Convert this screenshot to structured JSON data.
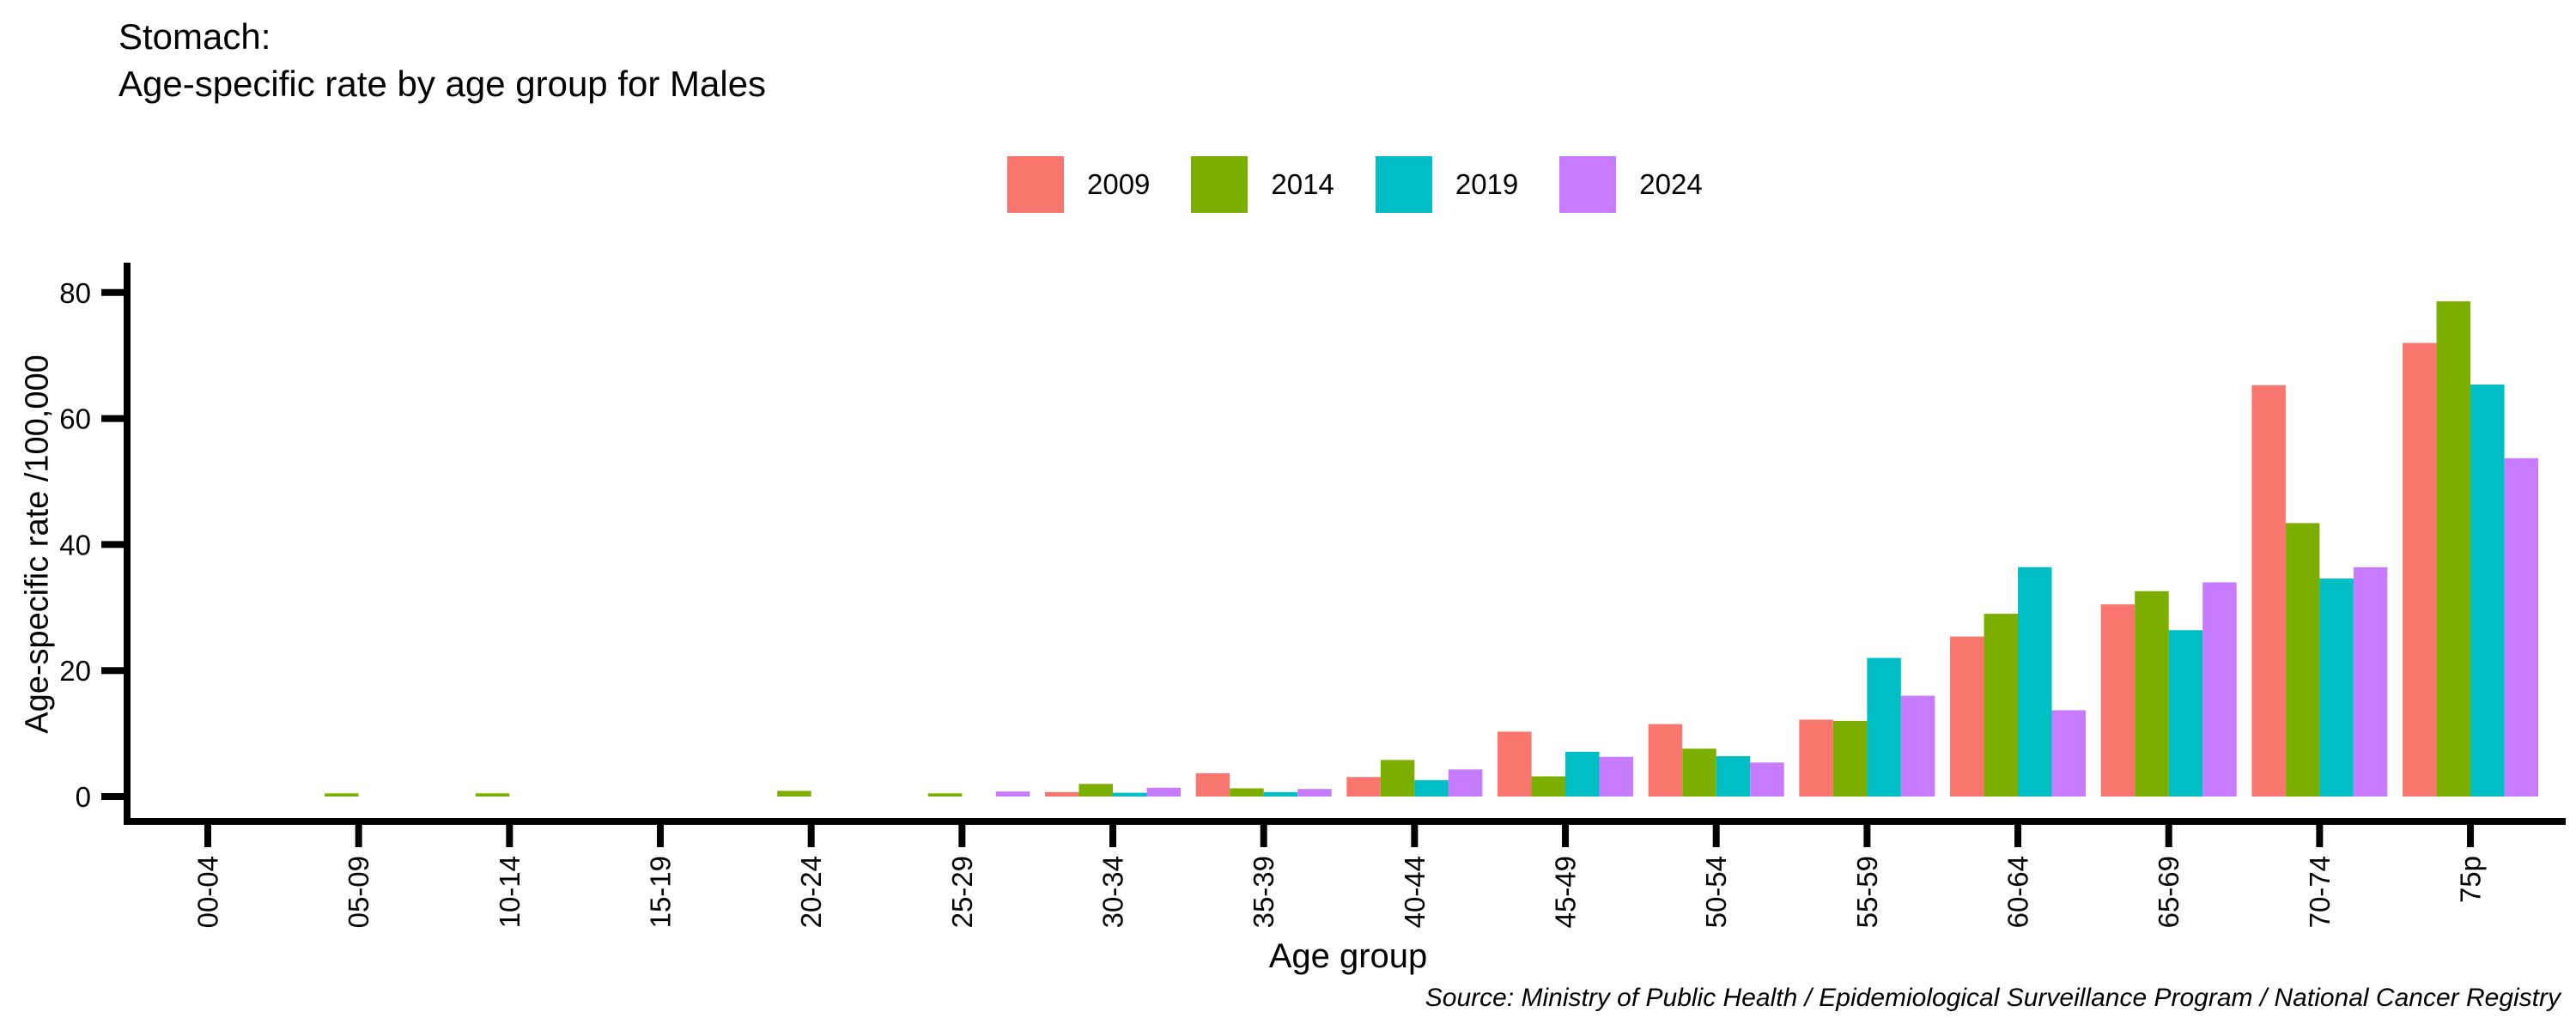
{
  "title": {
    "line1": "Stomach:",
    "line2": "Age-specific rate by age group for Males"
  },
  "legend": {
    "items": [
      {
        "label": "2009",
        "color": "#F8766D"
      },
      {
        "label": "2014",
        "color": "#7CAE00"
      },
      {
        "label": "2019",
        "color": "#00BFC4"
      },
      {
        "label": "2024",
        "color": "#C77CFF"
      }
    ]
  },
  "axes": {
    "y_label": "Age-specific rate /100,000",
    "x_label": "Age group",
    "y_ticks": [
      0,
      20,
      40,
      60,
      80
    ]
  },
  "source": "Source: Ministry of Public Health / Epidemiological Surveillance Program / National Cancer Registry",
  "chart_data": {
    "type": "bar",
    "title": "Stomach: Age-specific rate by age group for Males",
    "categories": [
      "00-04",
      "05-09",
      "10-14",
      "15-19",
      "20-24",
      "25-29",
      "30-34",
      "35-39",
      "40-44",
      "45-49",
      "50-54",
      "55-59",
      "60-64",
      "65-69",
      "70-74",
      "75p"
    ],
    "series": [
      {
        "name": "2009",
        "color": "#F8766D",
        "values": [
          0,
          0,
          0,
          0,
          0,
          0,
          0.7,
          3.7,
          3.1,
          10.3,
          11.5,
          12.2,
          25.4,
          30.5,
          65.3,
          72.0
        ]
      },
      {
        "name": "2014",
        "color": "#7CAE00",
        "values": [
          0,
          0.5,
          0.5,
          0,
          0.9,
          0.5,
          2.0,
          1.3,
          5.8,
          3.2,
          7.6,
          12.0,
          29.0,
          32.6,
          43.4,
          78.6
        ]
      },
      {
        "name": "2019",
        "color": "#00BFC4",
        "values": [
          0,
          0,
          0,
          0,
          0,
          0,
          0.6,
          0.7,
          2.6,
          7.1,
          6.4,
          22.0,
          36.4,
          26.4,
          34.6,
          65.4
        ]
      },
      {
        "name": "2024",
        "color": "#C77CFF",
        "values": [
          0,
          0,
          0,
          0,
          0,
          0.8,
          1.4,
          1.2,
          4.3,
          6.3,
          5.4,
          16.0,
          13.7,
          34.0,
          36.4,
          53.7
        ]
      }
    ],
    "xlabel": "Age group",
    "ylabel": "Age-specific rate /100,000",
    "ylim": [
      0,
      80
    ],
    "grid": false,
    "legend_position": "top-center",
    "bar_grouping": "grouped",
    "x_tick_rotation": 90
  }
}
